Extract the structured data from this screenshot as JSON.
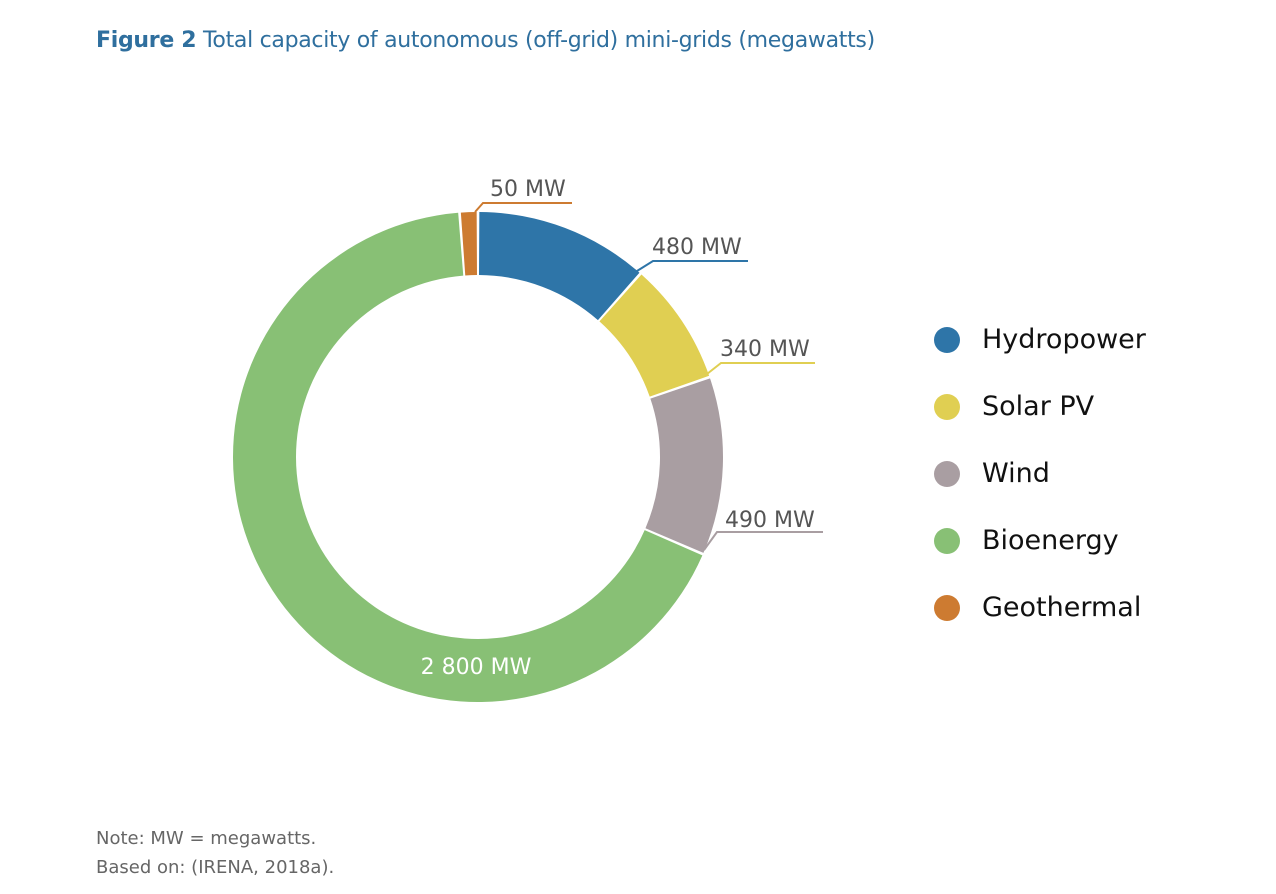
{
  "title": {
    "figure_label": "Figure 2",
    "text": "Total capacity of autonomous (off-grid) mini-grids (megawatts)"
  },
  "legend": {
    "items": [
      {
        "label": "Hydropower",
        "color": "#2e75a8"
      },
      {
        "label": "Solar PV",
        "color": "#e0cf52"
      },
      {
        "label": "Wind",
        "color": "#a99ea2"
      },
      {
        "label": "Bioenergy",
        "color": "#88c075"
      },
      {
        "label": "Geothermal",
        "color": "#cd7b31"
      }
    ]
  },
  "labels": {
    "hydropower": "480 MW",
    "solar": "340 MW",
    "wind": "490 MW",
    "bioenergy": "2 800 MW",
    "geothermal": "50 MW"
  },
  "notes": {
    "note": "Note: MW = megawatts.",
    "source": "Based on: (IRENA, 2018a)."
  },
  "chart_data": {
    "type": "pie",
    "variant": "donut",
    "title": "Figure 2 Total capacity of autonomous (off-grid) mini-grids (megawatts)",
    "unit": "MW",
    "categories": [
      "Hydropower",
      "Solar PV",
      "Wind",
      "Bioenergy",
      "Geothermal"
    ],
    "values": [
      480,
      340,
      490,
      2800,
      50
    ],
    "value_labels": [
      "480 MW",
      "340 MW",
      "490 MW",
      "2 800 MW",
      "50 MW"
    ],
    "colors": [
      "#2e75a8",
      "#e0cf52",
      "#a99ea2",
      "#88c075",
      "#cd7b31"
    ],
    "total": 4160,
    "start_angle": "12 o'clock",
    "direction": "clockwise",
    "legend_position": "right",
    "notes": [
      "Note: MW = megawatts.",
      "Based on: (IRENA, 2018a)."
    ]
  }
}
